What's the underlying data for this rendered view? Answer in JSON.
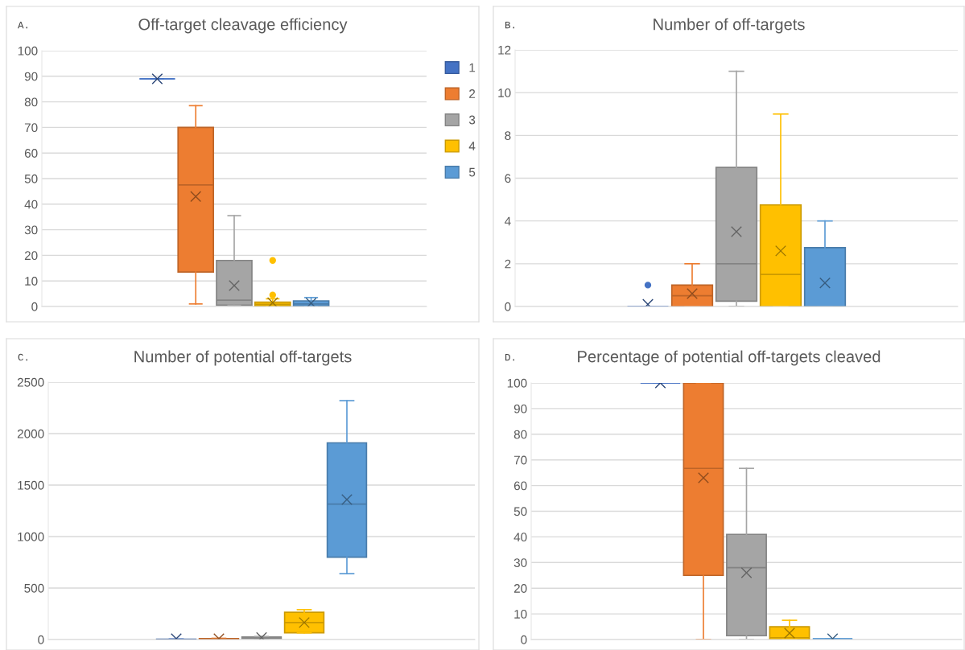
{
  "chart_data": [
    {
      "type": "box",
      "title": "Off-target cleavage efficiency",
      "annotations": [
        "A."
      ],
      "categories": [
        null
      ],
      "ylim": [
        0,
        100
      ],
      "yticks": [
        0,
        10,
        20,
        30,
        40,
        50,
        60,
        70,
        80,
        90,
        100
      ],
      "grid": "y",
      "legend": "right",
      "marker": "cross",
      "series": [
        {
          "name": "1",
          "color": "#4472c4",
          "boxes": [
            {
              "low": 89,
              "q1": 89,
              "median": 89,
              "q3": 89,
              "high": 89,
              "mean": 89
            }
          ]
        },
        {
          "name": "2",
          "color": "#ed7d31",
          "boxes": [
            {
              "low": 1,
              "q1": 13.5,
              "median": 47.5,
              "q3": 70,
              "high": 78.5,
              "mean": 43
            }
          ]
        },
        {
          "name": "3",
          "color": "#a5a5a5",
          "boxes": [
            {
              "low": 0.5,
              "q1": 0.5,
              "median": 2.5,
              "q3": 18,
              "high": 35.5,
              "mean": 8.2
            }
          ]
        },
        {
          "name": "4",
          "color": "#ffc000",
          "boxes": [
            {
              "low": 0,
              "q1": 0.2,
              "median": 0.8,
              "q3": 1.7,
              "high": 3,
              "mean": 1.5,
              "outliers": [
                4.5,
                18
              ]
            }
          ]
        },
        {
          "name": "5",
          "color": "#5b9bd5",
          "boxes": [
            {
              "low": 0,
              "q1": 0.2,
              "median": 1,
              "q3": 2.2,
              "high": 3.5,
              "mean": 1.3
            }
          ]
        }
      ]
    },
    {
      "type": "box",
      "title": "Number of off-targets",
      "annotations": [
        "B."
      ],
      "categories": [
        null
      ],
      "ylim": [
        0,
        12
      ],
      "yticks": [
        0,
        2,
        4,
        6,
        8,
        10,
        12
      ],
      "grid": "y",
      "marker": "cross",
      "series": [
        {
          "color": "#4472c4",
          "boxes": [
            {
              "low": 0,
              "q1": 0,
              "median": 0,
              "q3": 0,
              "high": 0,
              "mean": 0.1,
              "outliers": [
                1
              ]
            }
          ]
        },
        {
          "color": "#ed7d31",
          "boxes": [
            {
              "low": 0,
              "q1": 0,
              "median": 0.5,
              "q3": 1,
              "high": 2,
              "mean": 0.6
            }
          ]
        },
        {
          "color": "#a5a5a5",
          "boxes": [
            {
              "low": 0,
              "q1": 0.25,
              "median": 2,
              "q3": 6.5,
              "high": 11,
              "mean": 3.5
            }
          ]
        },
        {
          "color": "#ffc000",
          "boxes": [
            {
              "low": 0,
              "q1": 0,
              "median": 1.5,
              "q3": 4.75,
              "high": 9,
              "mean": 2.6
            }
          ]
        },
        {
          "color": "#5b9bd5",
          "boxes": [
            {
              "low": 0,
              "q1": 0,
              "median": 0,
              "q3": 2.75,
              "high": 4,
              "mean": 1.1
            }
          ]
        }
      ]
    },
    {
      "type": "box",
      "title": "Number of potential off-targets",
      "annotations": [
        "C."
      ],
      "categories": [
        null
      ],
      "ylim": [
        0,
        2500
      ],
      "yticks": [
        0,
        500,
        1000,
        1500,
        2000,
        2500
      ],
      "grid": "y",
      "marker": "cross",
      "series": [
        {
          "color": "#4472c4",
          "boxes": [
            {
              "low": 0,
              "q1": 0,
              "median": 2,
              "q3": 3,
              "high": 5,
              "mean": 8
            }
          ]
        },
        {
          "color": "#ed7d31",
          "boxes": [
            {
              "low": 0,
              "q1": 2,
              "median": 5,
              "q3": 10,
              "high": 12,
              "mean": 8
            }
          ]
        },
        {
          "color": "#a5a5a5",
          "boxes": [
            {
              "low": 5,
              "q1": 10,
              "median": 15,
              "q3": 25,
              "high": 30,
              "mean": 20
            }
          ]
        },
        {
          "color": "#ffc000",
          "boxes": [
            {
              "low": 65,
              "q1": 65,
              "median": 165,
              "q3": 265,
              "high": 290,
              "mean": 165
            }
          ]
        },
        {
          "color": "#5b9bd5",
          "boxes": [
            {
              "low": 640,
              "q1": 800,
              "median": 1315,
              "q3": 1910,
              "high": 2320,
              "mean": 1360
            }
          ]
        }
      ]
    },
    {
      "type": "box",
      "title": "Percentage of potential off-targets cleaved",
      "annotations": [
        "D."
      ],
      "categories": [
        null
      ],
      "ylim": [
        0,
        100
      ],
      "yticks": [
        0,
        10,
        20,
        30,
        40,
        50,
        60,
        70,
        80,
        90,
        100
      ],
      "grid": "y",
      "marker": "cross",
      "series": [
        {
          "color": "#4472c4",
          "boxes": [
            {
              "low": 100,
              "q1": 100,
              "median": 100,
              "q3": 100,
              "high": 100,
              "mean": 100
            }
          ]
        },
        {
          "color": "#ed7d31",
          "boxes": [
            {
              "low": 0,
              "q1": 25,
              "median": 66.7,
              "q3": 100,
              "high": 100,
              "mean": 63
            }
          ]
        },
        {
          "color": "#a5a5a5",
          "boxes": [
            {
              "low": 0,
              "q1": 1.5,
              "median": 28,
              "q3": 41,
              "high": 66.7,
              "mean": 26
            }
          ]
        },
        {
          "color": "#ffc000",
          "boxes": [
            {
              "low": 0,
              "q1": 0,
              "median": 0.7,
              "q3": 5,
              "high": 7.5,
              "mean": 2.5
            }
          ]
        },
        {
          "color": "#5b9bd5",
          "boxes": [
            {
              "low": 0.3,
              "q1": 0.3,
              "median": 0.3,
              "q3": 0.3,
              "high": 0.3,
              "mean": 0.3
            }
          ]
        }
      ]
    }
  ]
}
